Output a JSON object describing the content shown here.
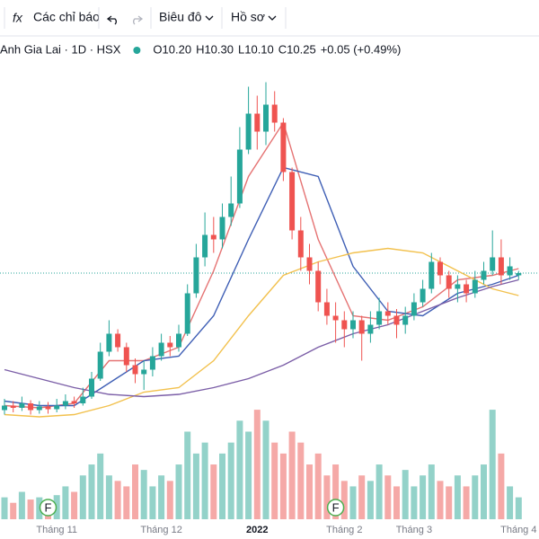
{
  "toolbar": {
    "indicator_icon": "fx",
    "indicators": "Các chỉ báo",
    "chart_menu": "Biêu đô",
    "profile_menu": "Hồ sơ"
  },
  "legend": {
    "symbol": "Anh Gia Lai · 1D · HSX",
    "ohlc": [
      {
        "label": "O",
        "value": "10.20"
      },
      {
        "label": "H",
        "value": "10.30"
      },
      {
        "label": "L",
        "value": "10.10"
      },
      {
        "label": "C",
        "value": "10.25"
      }
    ],
    "change": "+0.05 (+0.49%)"
  },
  "chart_data": {
    "type": "candlestick",
    "categories": [
      null,
      null,
      null,
      null,
      null,
      null,
      "Tháng 11",
      null,
      null,
      null,
      null,
      null,
      null,
      null,
      null,
      null,
      null,
      null,
      "Tháng 12",
      null,
      null,
      null,
      null,
      null,
      null,
      null,
      null,
      null,
      null,
      "2022",
      null,
      null,
      null,
      null,
      null,
      null,
      null,
      null,
      null,
      "Tháng 2",
      null,
      null,
      null,
      null,
      null,
      null,
      null,
      "Tháng 3",
      null,
      null,
      null,
      null,
      null,
      null,
      null,
      null,
      null,
      null,
      null,
      "Tháng 4"
    ],
    "open": [
      7.2,
      7.3,
      7.25,
      7.35,
      7.2,
      7.28,
      7.22,
      7.3,
      7.4,
      7.35,
      7.5,
      7.9,
      8.5,
      8.9,
      8.6,
      8.2,
      8.0,
      8.1,
      8.4,
      8.7,
      8.6,
      8.9,
      9.8,
      10.6,
      11.1,
      11.0,
      11.5,
      11.8,
      13.0,
      13.8,
      13.4,
      14.0,
      13.6,
      12.5,
      11.2,
      10.6,
      10.3,
      9.6,
      9.3,
      9.2,
      9.0,
      9.2,
      8.9,
      9.1,
      9.4,
      9.3,
      9.1,
      9.3,
      9.6,
      9.9,
      10.5,
      10.2,
      9.9,
      10.0,
      9.8,
      10.1,
      10.3,
      10.6,
      10.2,
      10.2
    ],
    "high": [
      7.45,
      7.4,
      7.5,
      7.42,
      7.4,
      7.38,
      7.45,
      7.55,
      7.5,
      7.7,
      8.05,
      8.7,
      9.2,
      9.0,
      8.7,
      8.35,
      8.3,
      8.6,
      8.9,
      8.85,
      9.1,
      10.0,
      10.9,
      11.6,
      11.5,
      11.8,
      12.4,
      13.5,
      14.4,
      14.2,
      14.5,
      14.3,
      13.7,
      12.6,
      11.5,
      10.9,
      10.5,
      9.9,
      9.6,
      9.4,
      9.4,
      9.3,
      9.4,
      9.7,
      9.6,
      9.45,
      9.5,
      9.8,
      10.1,
      10.7,
      10.6,
      10.3,
      10.2,
      10.1,
      10.3,
      10.5,
      11.2,
      11.0,
      10.6,
      10.3
    ],
    "low": [
      7.1,
      7.15,
      7.18,
      7.1,
      7.12,
      7.12,
      7.15,
      7.22,
      7.25,
      7.3,
      7.45,
      7.85,
      8.4,
      8.5,
      8.05,
      7.8,
      7.65,
      7.95,
      8.3,
      8.4,
      8.5,
      8.85,
      9.7,
      10.4,
      10.7,
      10.8,
      11.3,
      11.7,
      12.9,
      13.0,
      13.1,
      13.4,
      12.3,
      11.0,
      10.3,
      10.0,
      9.4,
      9.1,
      8.7,
      8.6,
      8.8,
      8.3,
      8.7,
      9.0,
      9.1,
      8.8,
      8.9,
      9.2,
      9.5,
      9.8,
      10.0,
      9.7,
      9.6,
      9.6,
      9.7,
      10.0,
      10.2,
      10.0,
      10.1,
      10.1
    ],
    "close": [
      7.3,
      7.25,
      7.35,
      7.2,
      7.28,
      7.22,
      7.3,
      7.4,
      7.35,
      7.5,
      7.9,
      8.5,
      8.9,
      8.6,
      8.2,
      8.0,
      8.1,
      8.4,
      8.7,
      8.6,
      8.9,
      9.8,
      10.6,
      11.1,
      11.0,
      11.5,
      11.8,
      13.0,
      13.8,
      13.4,
      14.0,
      13.6,
      12.5,
      11.2,
      10.6,
      10.3,
      9.6,
      9.3,
      9.2,
      9.0,
      9.2,
      8.9,
      9.1,
      9.4,
      9.3,
      9.1,
      9.3,
      9.6,
      9.9,
      10.5,
      10.2,
      9.9,
      10.0,
      9.8,
      10.1,
      10.3,
      10.6,
      10.2,
      10.4,
      10.25
    ],
    "ylim": [
      6.93,
      14.93
    ],
    "up_color": "#26a69a",
    "down_color": "#ef5350",
    "last_price_line": true,
    "volume": {
      "values": [
        2,
        1.5,
        2.5,
        1.8,
        2,
        1.6,
        2.2,
        3,
        2.5,
        4,
        5,
        6,
        4,
        3.5,
        3,
        5,
        4.5,
        3,
        4,
        3.5,
        5,
        8,
        6,
        7,
        5,
        6,
        7,
        9,
        8,
        10,
        9,
        7,
        6,
        8,
        7,
        5,
        6,
        4,
        5,
        3.5,
        3,
        4,
        3.5,
        5,
        4,
        3,
        4.5,
        3,
        4,
        5,
        3.5,
        3,
        4,
        3,
        4,
        5,
        10,
        6,
        3,
        2
      ],
      "ylim": [
        0,
        10.5
      ],
      "up_color": "#93d2c9",
      "down_color": "#f5a9a7"
    },
    "moving_averages": {
      "x": [
        0,
        4,
        8,
        12,
        16,
        20,
        24,
        28,
        32,
        36,
        40,
        44,
        48,
        52,
        56,
        59
      ],
      "lines": [
        {
          "color": "#e57373",
          "values": [
            7.3,
            7.25,
            7.35,
            8.3,
            8.3,
            8.6,
            10.3,
            12.4,
            13.6,
            11.0,
            9.3,
            9.2,
            9.5,
            10.1,
            10.2,
            10.35
          ]
        },
        {
          "color": "#3f5fb5",
          "values": [
            7.4,
            7.3,
            7.3,
            7.8,
            8.3,
            8.4,
            9.3,
            11.0,
            12.6,
            12.4,
            10.4,
            9.4,
            9.3,
            9.8,
            10.0,
            10.2
          ]
        },
        {
          "color": "#f2c14e",
          "values": [
            7.1,
            7.05,
            7.1,
            7.3,
            7.6,
            7.7,
            8.3,
            9.3,
            10.2,
            10.5,
            10.7,
            10.8,
            10.7,
            10.3,
            9.9,
            9.75
          ]
        },
        {
          "color": "#7b5ea7",
          "values": [
            8.1,
            7.9,
            7.7,
            7.55,
            7.5,
            7.55,
            7.7,
            7.9,
            8.2,
            8.6,
            8.9,
            9.1,
            9.4,
            9.7,
            9.95,
            10.1
          ]
        }
      ]
    },
    "events": [
      {
        "index": 5,
        "label": "F"
      },
      {
        "index": 38,
        "label": "F"
      }
    ]
  }
}
